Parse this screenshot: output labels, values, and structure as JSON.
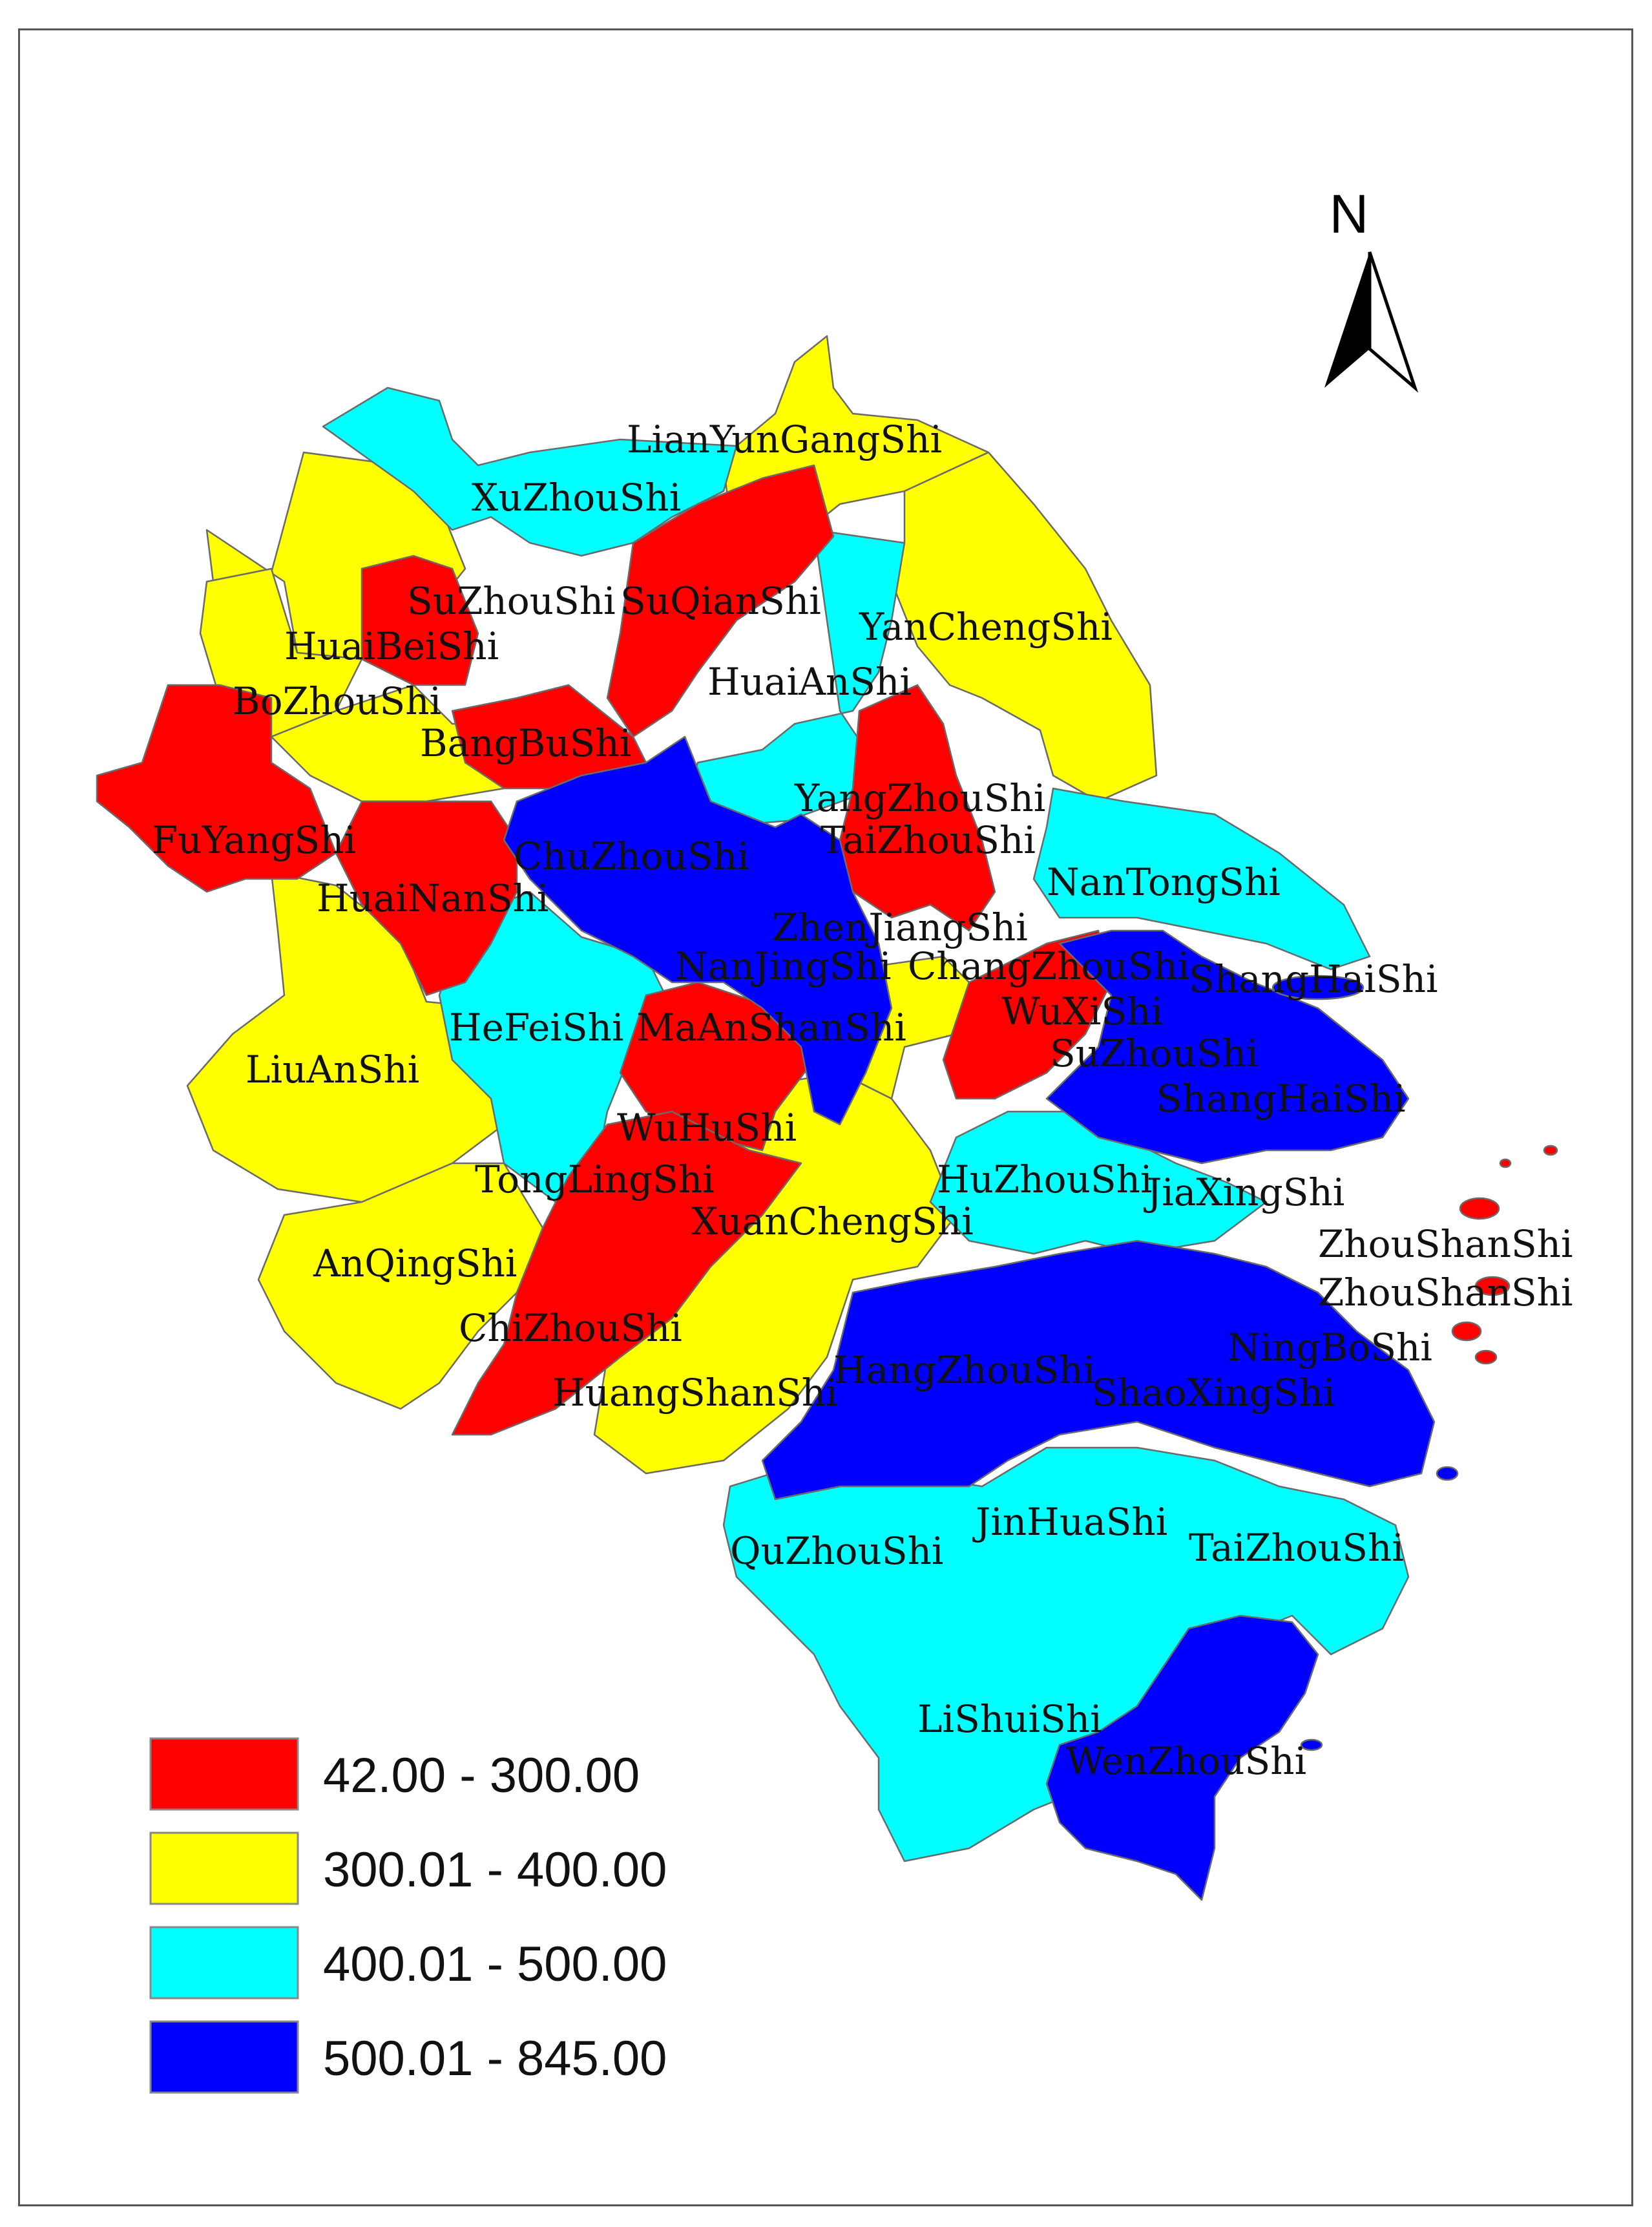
{
  "north_arrow": {
    "letter": "N"
  },
  "legend": {
    "classes": [
      {
        "label": "42.00 - 300.00",
        "color": "#ff0000"
      },
      {
        "label": "300.01 - 400.00",
        "color": "#ffff00"
      },
      {
        "label": "400.01 - 500.00",
        "color": "#00ffff"
      },
      {
        "label": "500.01 - 845.00",
        "color": "#0000ff"
      }
    ]
  },
  "cities": {
    "lianyungang": "LianYunGangShi",
    "xuzhou": "XuZhouShi",
    "suzhou_ah": "SuZhouShi",
    "suqian": "SuQianShi",
    "yancheng": "YanChengShi",
    "huaibei": "HuaiBeiShi",
    "huaian": "HuaiAnShi",
    "bozhou": "BoZhouShi",
    "bangbu": "BangBuShi",
    "yangzhou": "YangZhouShi",
    "taizhou_js": "TaiZhouShi",
    "fuyang": "FuYangShi",
    "chuzhou": "ChuZhouShi",
    "huainan": "HuaiNanShi",
    "nantong": "NanTongShi",
    "zhenjiang": "ZhenJiangShi",
    "nanjing": "NanJingShi",
    "changzhou": "ChangZhouShi",
    "shanghai_1": "ShangHaiShi",
    "wuxi": "WuXiShi",
    "hefei": "HeFeiShi",
    "maanshan": "MaAnShanShi",
    "suzhou_js": "SuZhouShi",
    "liuan": "LiuAnShi",
    "shanghai_2": "ShangHaiShi",
    "wuhu": "WuHuShi",
    "tongling": "TongLingShi",
    "huzhou": "HuZhouShi",
    "jiaxing": "JiaXingShi",
    "xuancheng": "XuanChengShi",
    "zhoushan_1": "ZhouShanShi",
    "anqing": "AnQingShi",
    "zhoushan_2": "ZhouShanShi",
    "chizhou": "ChiZhouShi",
    "ningbo": "NingBoShi",
    "hangzhou": "HangZhouShi",
    "shaoxing": "ShaoXingShi",
    "huangshan": "HuangShanShi",
    "jinhua": "JinHuaShi",
    "quzhou": "QuZhouShi",
    "taizhou_zj": "TaiZhouShi",
    "lishui": "LiShuiShi",
    "wenzhou": "WenZhouShi"
  }
}
